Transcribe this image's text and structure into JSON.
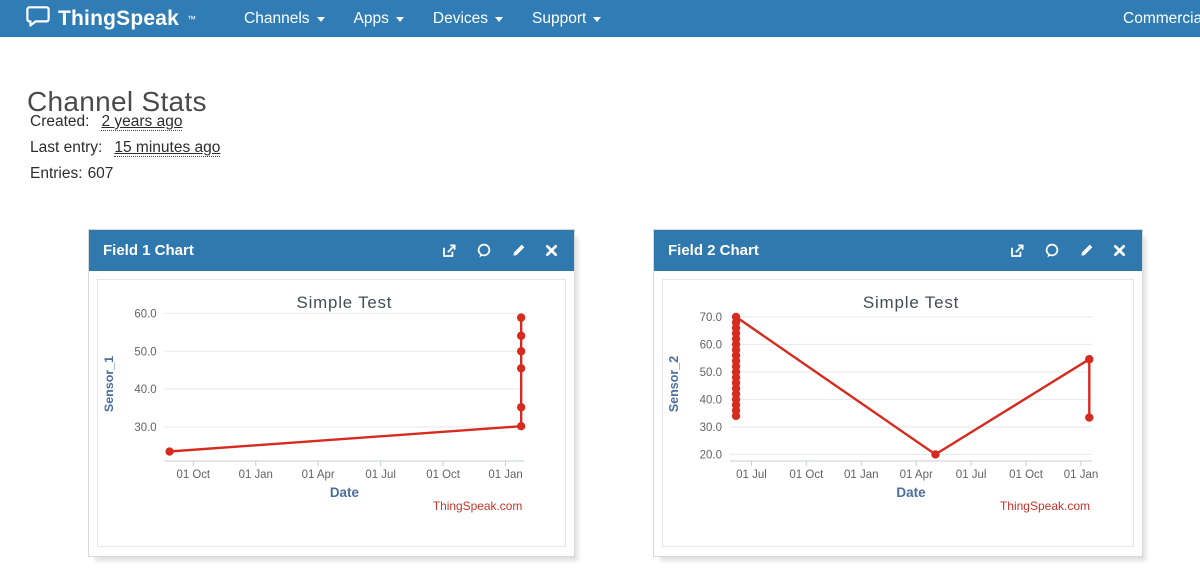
{
  "colors": {
    "navbar_bg": "#307cb5",
    "panel_header_bg": "#2f79af",
    "line_red": "#d62b1f",
    "credit_red": "#c7332b",
    "axis_title_blue": "#4a6e9e",
    "chart_title_color": "#454c55",
    "tick_label_color": "#636363",
    "grid_color": "#e8e8e8",
    "axis_line_color": "#c6cdd4"
  },
  "navbar": {
    "brand": "ThingSpeak",
    "brand_tm": "™",
    "items": [
      {
        "label": "Channels"
      },
      {
        "label": "Apps"
      },
      {
        "label": "Devices"
      },
      {
        "label": "Support"
      }
    ],
    "right_item": "Commercial Use"
  },
  "page": {
    "title": "Channel Stats",
    "stats": [
      {
        "label": "Created:",
        "value": "2 years ago"
      },
      {
        "label": "Last entry:",
        "value": "15 minutes ago"
      },
      {
        "label": "Entries:",
        "value": "607"
      }
    ]
  },
  "panels": [
    {
      "header": "Field 1 Chart",
      "icons": [
        "external-link",
        "comment",
        "pencil",
        "close"
      ],
      "chart_data": {
        "type": "line",
        "title": "Simple Test",
        "xlabel": "Date",
        "ylabel": "Sensor_1",
        "credit": "ThingSpeak.com",
        "grid": true,
        "legend": false,
        "x_axis_note": "x in tick-index units; ticks are evenly spaced dates",
        "x_tick_labels": [
          "01 Oct",
          "01 Jan",
          "01 Apr",
          "01 Jul",
          "01 Oct",
          "01 Jan"
        ],
        "xlim_ticks": [
          -0.46,
          5.3
        ],
        "ylim": [
          21,
          61.7
        ],
        "yticks": [
          30,
          40,
          50,
          60
        ],
        "ytick_labels": [
          "30.0",
          "40.0",
          "50.0",
          "60.0"
        ],
        "series": [
          {
            "name": "Sensor_1",
            "points": [
              {
                "x": -0.38,
                "y": 23.5
              },
              {
                "x": 5.25,
                "y": 30.2
              },
              {
                "x": 5.25,
                "y": 35.2
              },
              {
                "x": 5.25,
                "y": 45.5
              },
              {
                "x": 5.25,
                "y": 50.0
              },
              {
                "x": 5.25,
                "y": 54.1
              },
              {
                "x": 5.25,
                "y": 58.9
              }
            ]
          }
        ]
      }
    },
    {
      "header": "Field 2 Chart",
      "icons": [
        "external-link",
        "comment",
        "pencil",
        "close"
      ],
      "chart_data": {
        "type": "line",
        "title": "Simple Test",
        "xlabel": "Date",
        "ylabel": "Sensor_2",
        "credit": "ThingSpeak.com",
        "grid": true,
        "legend": false,
        "x_axis_note": "x in tick-index units; ticks are evenly spaced dates; dense stack of points at first x",
        "x_tick_labels": [
          "01 Jul",
          "01 Oct",
          "01 Jan",
          "01 Apr",
          "01 Jul",
          "01 Oct",
          "01 Jan"
        ],
        "xlim_ticks": [
          -0.39,
          6.2
        ],
        "ylim": [
          17.6,
          73.6
        ],
        "yticks": [
          20,
          30,
          40,
          50,
          60,
          70
        ],
        "ytick_labels": [
          "20.0",
          "30.0",
          "40.0",
          "50.0",
          "60.0",
          "70.0"
        ],
        "series": [
          {
            "name": "Sensor_2",
            "points": [
              {
                "x": -0.28,
                "y": 34
              },
              {
                "x": -0.28,
                "y": 36
              },
              {
                "x": -0.28,
                "y": 38
              },
              {
                "x": -0.28,
                "y": 40
              },
              {
                "x": -0.28,
                "y": 42
              },
              {
                "x": -0.28,
                "y": 44
              },
              {
                "x": -0.28,
                "y": 46
              },
              {
                "x": -0.28,
                "y": 48
              },
              {
                "x": -0.28,
                "y": 50
              },
              {
                "x": -0.28,
                "y": 52
              },
              {
                "x": -0.28,
                "y": 54
              },
              {
                "x": -0.28,
                "y": 56
              },
              {
                "x": -0.28,
                "y": 58
              },
              {
                "x": -0.28,
                "y": 60
              },
              {
                "x": -0.28,
                "y": 62
              },
              {
                "x": -0.28,
                "y": 64
              },
              {
                "x": -0.28,
                "y": 66
              },
              {
                "x": -0.28,
                "y": 68
              },
              {
                "x": -0.28,
                "y": 70
              },
              {
                "x": 3.35,
                "y": 20.0
              },
              {
                "x": 6.15,
                "y": 54.6
              },
              {
                "x": 6.15,
                "y": 33.4
              }
            ]
          }
        ]
      }
    }
  ]
}
